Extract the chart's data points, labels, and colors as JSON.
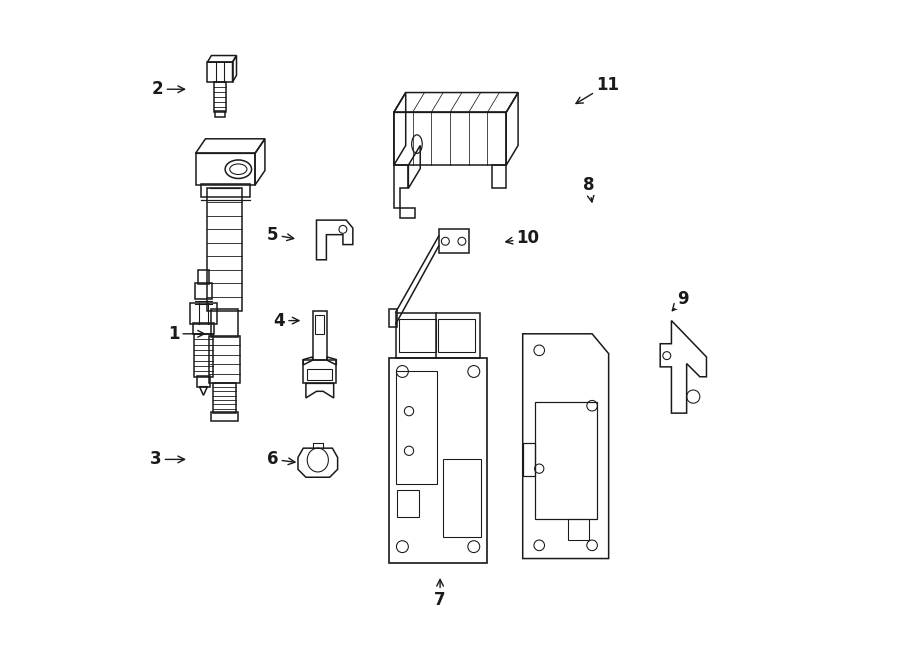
{
  "background_color": "#ffffff",
  "line_color": "#1a1a1a",
  "fig_width": 9.0,
  "fig_height": 6.61,
  "labels": {
    "1": [
      0.082,
      0.495,
      0.135,
      0.495
    ],
    "2": [
      0.058,
      0.865,
      0.105,
      0.865
    ],
    "3": [
      0.055,
      0.305,
      0.105,
      0.305
    ],
    "4": [
      0.242,
      0.515,
      0.278,
      0.515
    ],
    "5": [
      0.232,
      0.645,
      0.27,
      0.638
    ],
    "6": [
      0.232,
      0.305,
      0.272,
      0.3
    ],
    "7": [
      0.485,
      0.092,
      0.485,
      0.13
    ],
    "8": [
      0.71,
      0.72,
      0.716,
      0.688
    ],
    "9": [
      0.852,
      0.548,
      0.832,
      0.525
    ],
    "10": [
      0.618,
      0.64,
      0.578,
      0.633
    ],
    "11": [
      0.738,
      0.872,
      0.685,
      0.84
    ]
  }
}
